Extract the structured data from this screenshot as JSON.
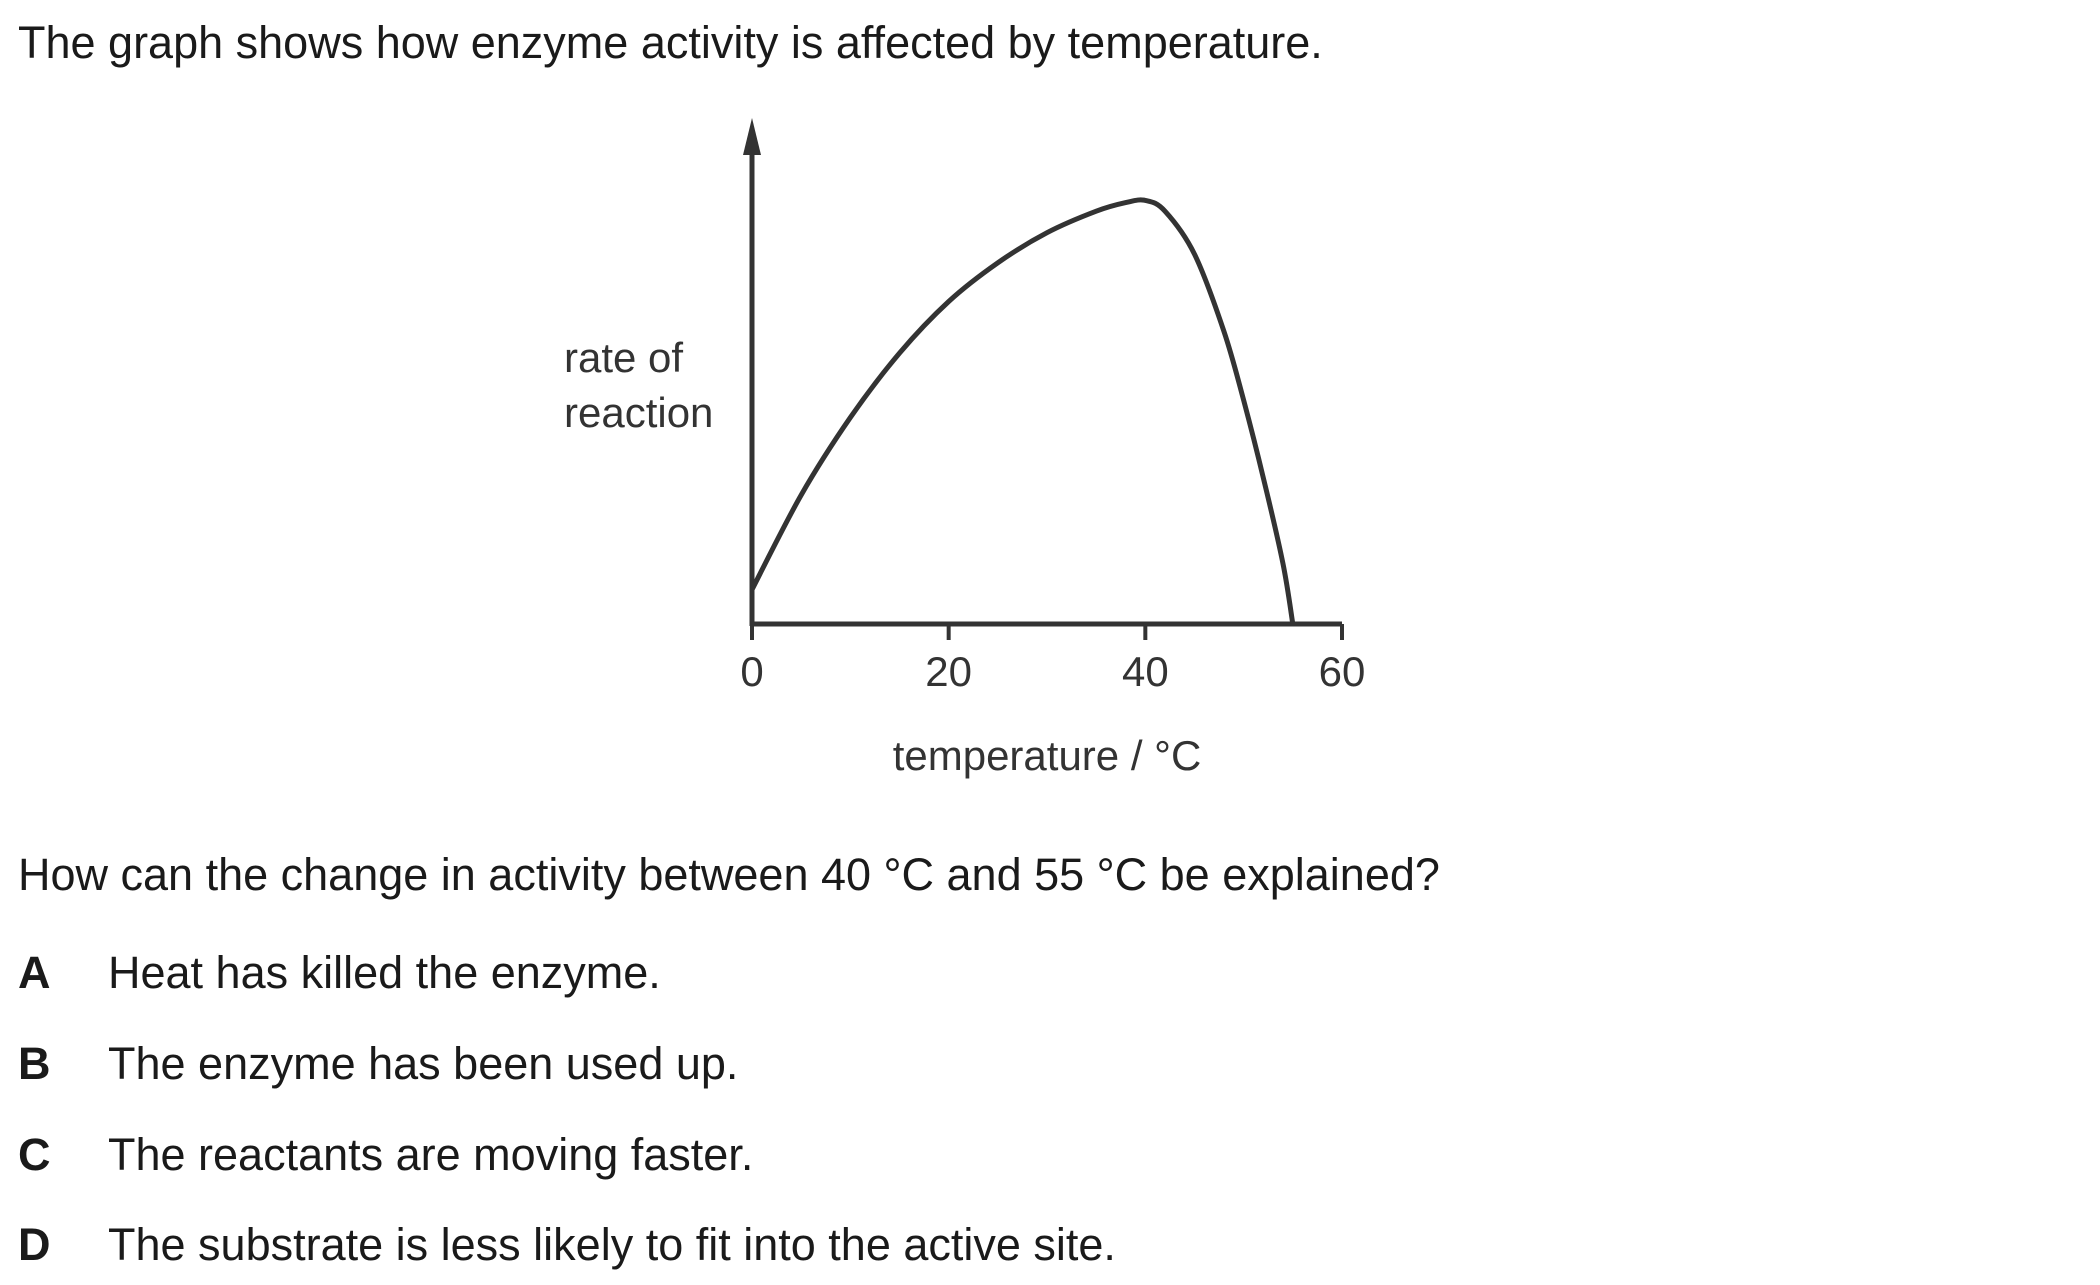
{
  "intro": "The graph shows how enzyme activity is affected by temperature.",
  "question": "How can the change in activity between 40 °C and 55 °C be explained?",
  "options": [
    {
      "letter": "A",
      "text": "Heat has killed the enzyme."
    },
    {
      "letter": "B",
      "text": "The enzyme has been used up."
    },
    {
      "letter": "C",
      "text": "The reactants are moving faster."
    },
    {
      "letter": "D",
      "text": "The substrate is less likely to fit into the active site."
    }
  ],
  "chart_data": {
    "type": "line",
    "title": "",
    "xlabel": "temperature / °C",
    "ylabel_lines": [
      "rate of",
      "reaction"
    ],
    "xlim": [
      0,
      60
    ],
    "ylim": [
      0,
      100
    ],
    "x_ticks": [
      0,
      20,
      40,
      60
    ],
    "y_ticks": [],
    "grid": false,
    "legend": "none",
    "line_color": "#333333",
    "series": [
      {
        "x": [
          0,
          5,
          10,
          15,
          20,
          25,
          30,
          35,
          38,
          40,
          42,
          45,
          48,
          50,
          52,
          54,
          55
        ],
        "y": [
          8,
          30,
          48,
          63,
          75,
          84,
          91,
          96,
          98,
          98.5,
          96,
          86,
          68,
          52,
          34,
          14,
          0
        ]
      }
    ]
  }
}
